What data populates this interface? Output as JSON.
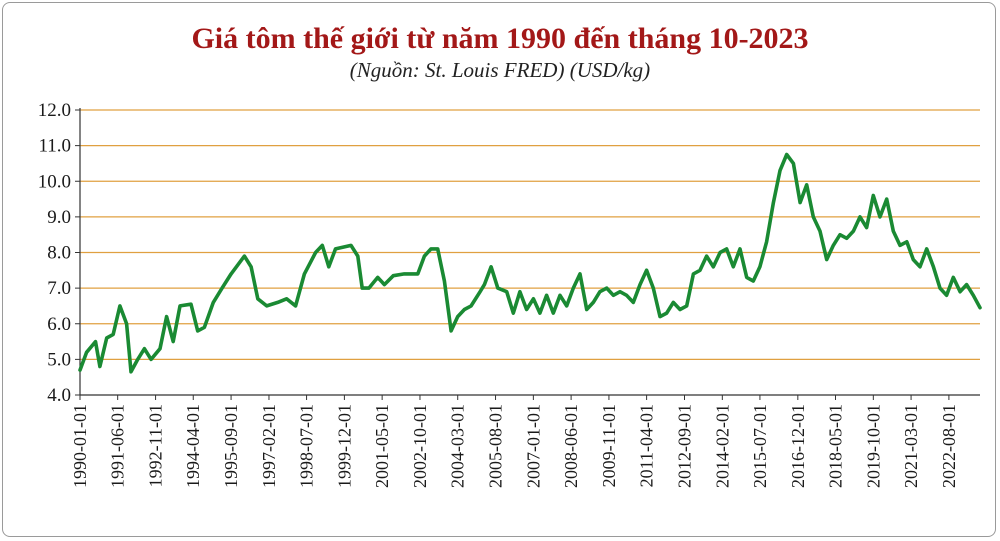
{
  "chart_data": {
    "type": "line",
    "title": "Giá tôm thế giới từ năm 1990 đến tháng 10-2023",
    "subtitle": "(Nguồn: St. Louis FRED) (USD/kg)",
    "xlabel": "",
    "ylabel": "",
    "ylim": [
      4.0,
      12.0
    ],
    "yticks": [
      "4.0",
      "5.0",
      "6.0",
      "7.0",
      "8.0",
      "9.0",
      "10.0",
      "11.0",
      "12.0"
    ],
    "xrange": [
      "1990-01-01",
      "2023-10-01"
    ],
    "xticks": [
      "1990-01-01",
      "1991-06-01",
      "1992-11-01",
      "1994-04-01",
      "1995-09-01",
      "1997-02-01",
      "1998-07-01",
      "1999-12-01",
      "2001-05-01",
      "2002-10-01",
      "2004-03-01",
      "2005-08-01",
      "2007-01-01",
      "2008-06-01",
      "2009-11-01",
      "2011-04-01",
      "2012-09-01",
      "2014-02-01",
      "2015-07-01",
      "2016-12-01",
      "2018-05-01",
      "2019-10-01",
      "2021-03-01",
      "2022-08-01"
    ],
    "grid": "horizontal",
    "legend": "none",
    "series": [
      {
        "color": "#1a8a33",
        "points": [
          [
            "1990-01-01",
            4.7
          ],
          [
            "1990-04-01",
            5.2
          ],
          [
            "1990-08-01",
            5.5
          ],
          [
            "1990-10-01",
            4.8
          ],
          [
            "1991-01-01",
            5.6
          ],
          [
            "1991-04-01",
            5.7
          ],
          [
            "1991-07-01",
            6.5
          ],
          [
            "1991-10-01",
            6.0
          ],
          [
            "1991-12-01",
            4.65
          ],
          [
            "1992-03-01",
            5.0
          ],
          [
            "1992-06-01",
            5.3
          ],
          [
            "1992-09-01",
            5.0
          ],
          [
            "1993-01-01",
            5.3
          ],
          [
            "1993-04-01",
            6.2
          ],
          [
            "1993-07-01",
            5.5
          ],
          [
            "1993-10-01",
            6.5
          ],
          [
            "1994-03-01",
            6.55
          ],
          [
            "1994-06-01",
            5.8
          ],
          [
            "1994-09-01",
            5.9
          ],
          [
            "1995-01-01",
            6.6
          ],
          [
            "1995-05-01",
            7.0
          ],
          [
            "1995-09-01",
            7.4
          ],
          [
            "1996-03-01",
            7.9
          ],
          [
            "1996-06-01",
            7.6
          ],
          [
            "1996-09-01",
            6.7
          ],
          [
            "1997-01-01",
            6.5
          ],
          [
            "1997-06-01",
            6.6
          ],
          [
            "1997-10-01",
            6.7
          ],
          [
            "1998-02-01",
            6.5
          ],
          [
            "1998-06-01",
            7.4
          ],
          [
            "1998-11-01",
            8.0
          ],
          [
            "1999-02-01",
            8.2
          ],
          [
            "1999-05-01",
            7.6
          ],
          [
            "1999-08-01",
            8.1
          ],
          [
            "2000-03-01",
            8.2
          ],
          [
            "2000-06-01",
            7.9
          ],
          [
            "2000-08-01",
            7.0
          ],
          [
            "2000-11-01",
            7.0
          ],
          [
            "2001-03-01",
            7.3
          ],
          [
            "2001-06-01",
            7.1
          ],
          [
            "2001-10-01",
            7.35
          ],
          [
            "2002-03-01",
            7.4
          ],
          [
            "2002-09-01",
            7.4
          ],
          [
            "2002-12-01",
            7.9
          ],
          [
            "2003-03-01",
            8.1
          ],
          [
            "2003-06-01",
            8.1
          ],
          [
            "2003-09-01",
            7.2
          ],
          [
            "2003-12-01",
            5.8
          ],
          [
            "2004-03-01",
            6.2
          ],
          [
            "2004-06-01",
            6.4
          ],
          [
            "2004-09-01",
            6.5
          ],
          [
            "2005-01-01",
            6.9
          ],
          [
            "2005-03-01",
            7.1
          ],
          [
            "2005-06-01",
            7.6
          ],
          [
            "2005-09-01",
            7.0
          ],
          [
            "2006-01-01",
            6.9
          ],
          [
            "2006-04-01",
            6.3
          ],
          [
            "2006-07-01",
            6.9
          ],
          [
            "2006-10-01",
            6.4
          ],
          [
            "2007-01-01",
            6.7
          ],
          [
            "2007-04-01",
            6.3
          ],
          [
            "2007-07-01",
            6.8
          ],
          [
            "2007-10-01",
            6.3
          ],
          [
            "2008-01-01",
            6.8
          ],
          [
            "2008-04-01",
            6.5
          ],
          [
            "2008-07-01",
            7.0
          ],
          [
            "2008-10-01",
            7.4
          ],
          [
            "2009-01-01",
            6.4
          ],
          [
            "2009-04-01",
            6.6
          ],
          [
            "2009-07-01",
            6.9
          ],
          [
            "2009-10-01",
            7.0
          ],
          [
            "2010-01-01",
            6.8
          ],
          [
            "2010-04-01",
            6.9
          ],
          [
            "2010-07-01",
            6.8
          ],
          [
            "2010-10-01",
            6.6
          ],
          [
            "2011-01-01",
            7.1
          ],
          [
            "2011-04-01",
            7.5
          ],
          [
            "2011-07-01",
            7.0
          ],
          [
            "2011-10-01",
            6.2
          ],
          [
            "2012-01-01",
            6.3
          ],
          [
            "2012-04-01",
            6.6
          ],
          [
            "2012-07-01",
            6.4
          ],
          [
            "2012-10-01",
            6.5
          ],
          [
            "2013-01-01",
            7.4
          ],
          [
            "2013-04-01",
            7.5
          ],
          [
            "2013-07-01",
            7.9
          ],
          [
            "2013-10-01",
            7.6
          ],
          [
            "2014-01-01",
            8.0
          ],
          [
            "2014-04-01",
            8.1
          ],
          [
            "2014-07-01",
            7.6
          ],
          [
            "2014-10-01",
            8.1
          ],
          [
            "2015-01-01",
            7.3
          ],
          [
            "2015-04-01",
            7.2
          ],
          [
            "2015-07-01",
            7.6
          ],
          [
            "2015-10-01",
            8.3
          ],
          [
            "2016-01-01",
            9.4
          ],
          [
            "2016-04-01",
            10.3
          ],
          [
            "2016-07-01",
            10.75
          ],
          [
            "2016-10-01",
            10.5
          ],
          [
            "2017-01-01",
            9.4
          ],
          [
            "2017-04-01",
            9.9
          ],
          [
            "2017-07-01",
            9.0
          ],
          [
            "2017-10-01",
            8.6
          ],
          [
            "2018-01-01",
            7.8
          ],
          [
            "2018-04-01",
            8.2
          ],
          [
            "2018-07-01",
            8.5
          ],
          [
            "2018-10-01",
            8.4
          ],
          [
            "2019-01-01",
            8.6
          ],
          [
            "2019-04-01",
            9.0
          ],
          [
            "2019-07-01",
            8.7
          ],
          [
            "2019-10-01",
            9.6
          ],
          [
            "2020-01-01",
            9.0
          ],
          [
            "2020-04-01",
            9.5
          ],
          [
            "2020-07-01",
            8.6
          ],
          [
            "2020-10-01",
            8.2
          ],
          [
            "2021-01-01",
            8.3
          ],
          [
            "2021-04-01",
            7.8
          ],
          [
            "2021-07-01",
            7.6
          ],
          [
            "2021-10-01",
            8.1
          ],
          [
            "2022-01-01",
            7.6
          ],
          [
            "2022-04-01",
            7.0
          ],
          [
            "2022-07-01",
            6.8
          ],
          [
            "2022-10-01",
            7.3
          ],
          [
            "2023-01-01",
            6.9
          ],
          [
            "2023-04-01",
            7.1
          ],
          [
            "2023-07-01",
            6.8
          ],
          [
            "2023-10-01",
            6.45
          ]
        ]
      }
    ]
  },
  "colors": {
    "title": "#a31818",
    "subtitle": "#222222",
    "line": "#1a8a33",
    "grid": "#e0a040",
    "axis": "#333333",
    "text": "#1a1a1a"
  }
}
